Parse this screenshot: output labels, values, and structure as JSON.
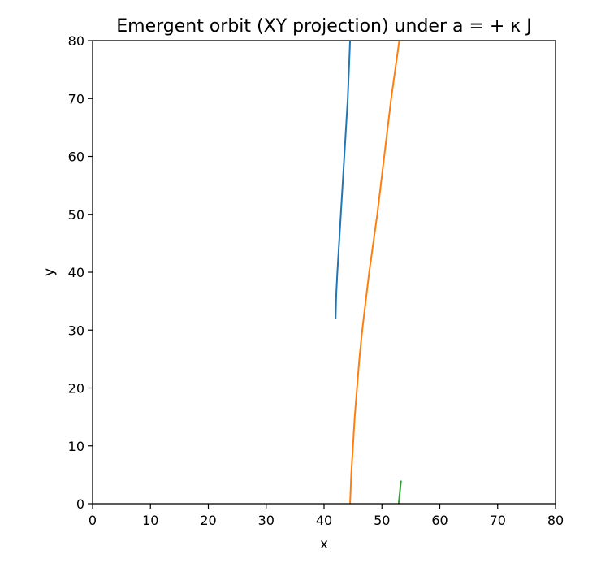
{
  "chart_data": {
    "type": "line",
    "title": "Emergent orbit (XY projection) under a = + κ J",
    "xlabel": "x",
    "ylabel": "y",
    "xlim": [
      0,
      80
    ],
    "ylim": [
      0,
      80
    ],
    "xticks": [
      0,
      10,
      20,
      30,
      40,
      50,
      60,
      70,
      80
    ],
    "yticks": [
      0,
      10,
      20,
      30,
      40,
      50,
      60,
      70,
      80
    ],
    "grid": false,
    "series": [
      {
        "color": "#1f77b4",
        "points": [
          [
            42.0,
            32.0
          ],
          [
            42.1,
            36.0
          ],
          [
            42.3,
            40.0
          ],
          [
            42.6,
            45.0
          ],
          [
            42.9,
            50.0
          ],
          [
            43.2,
            55.0
          ],
          [
            43.5,
            60.0
          ],
          [
            43.8,
            65.0
          ],
          [
            44.1,
            70.0
          ],
          [
            44.3,
            75.0
          ],
          [
            44.5,
            80.0
          ]
        ]
      },
      {
        "color": "#ff7f0e",
        "points": [
          [
            44.5,
            0.0
          ],
          [
            44.7,
            5.0
          ],
          [
            45.0,
            10.0
          ],
          [
            45.3,
            15.0
          ],
          [
            45.7,
            20.0
          ],
          [
            46.1,
            25.0
          ],
          [
            46.6,
            30.0
          ],
          [
            47.2,
            35.0
          ],
          [
            47.8,
            40.0
          ],
          [
            48.5,
            45.0
          ],
          [
            49.2,
            50.0
          ],
          [
            49.8,
            55.0
          ],
          [
            50.4,
            60.0
          ],
          [
            51.0,
            65.0
          ],
          [
            51.6,
            70.0
          ],
          [
            52.3,
            75.0
          ],
          [
            53.0,
            80.0
          ]
        ]
      },
      {
        "color": "#2ca02c",
        "points": [
          [
            52.9,
            0.0
          ],
          [
            53.1,
            2.0
          ],
          [
            53.3,
            4.0
          ]
        ]
      }
    ]
  }
}
